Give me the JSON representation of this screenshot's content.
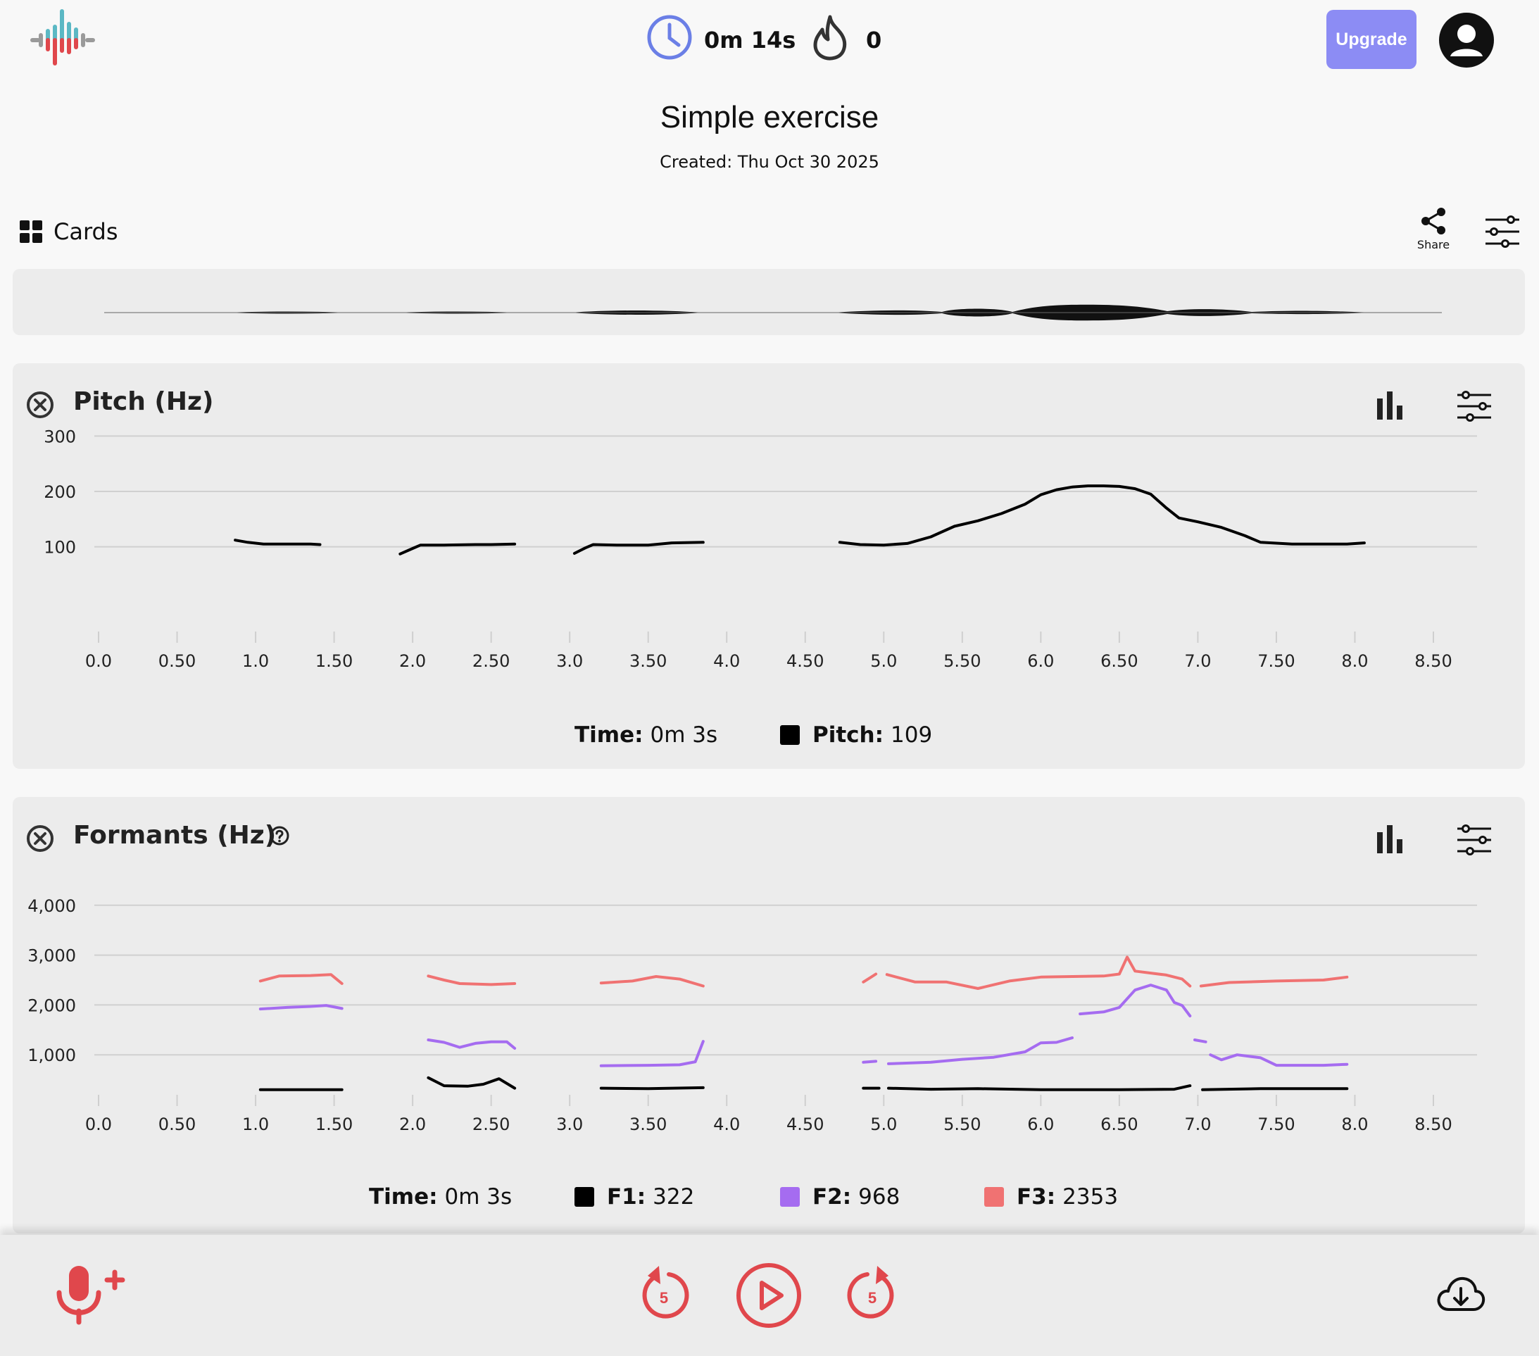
{
  "header": {
    "timer": "0m 14s",
    "streak": "0",
    "upgrade_label": "Upgrade"
  },
  "exercise": {
    "title": "Simple exercise",
    "created": "Created: Thu Oct 30 2025"
  },
  "toolbar": {
    "cards_label": "Cards",
    "share_label": "Share"
  },
  "pitch_panel": {
    "title": "Pitch (Hz)",
    "time_label": "Time:",
    "time_value": "0m 3s",
    "pitch_label": "Pitch:",
    "pitch_value": "109"
  },
  "formants_panel": {
    "title": "Formants (Hz)",
    "time_label": "Time:",
    "time_value": "0m 3s",
    "f1_label": "F1:",
    "f1_value": "322",
    "f2_label": "F2:",
    "f2_value": "968",
    "f3_label": "F3:",
    "f3_value": "2353"
  },
  "bottom_bar": {
    "rewind_seconds": "5",
    "forward_seconds": "5"
  },
  "colors": {
    "accent": "#e0474c",
    "upgrade": "#8c8cf4",
    "timer_icon": "#6b7fe6",
    "f1": "#000000",
    "f2": "#a56cf0",
    "f3": "#f07272"
  },
  "chart_data": [
    {
      "type": "line",
      "title": "Pitch (Hz)",
      "xlim": [
        0,
        8.5
      ],
      "ylim": [
        0,
        320
      ],
      "x_ticks": [
        "0.0",
        "0.50",
        "1.0",
        "1.50",
        "2.0",
        "2.50",
        "3.0",
        "3.50",
        "4.0",
        "4.50",
        "5.0",
        "5.50",
        "6.0",
        "6.50",
        "7.0",
        "7.50",
        "8.0",
        "8.50"
      ],
      "y_ticks": [
        "100",
        "200",
        "300"
      ],
      "grid": true,
      "series": [
        {
          "color": "#000000",
          "segments": [
            [
              [
                0.87,
                112
              ],
              [
                0.95,
                108
              ],
              [
                1.05,
                105
              ],
              [
                1.2,
                105
              ],
              [
                1.35,
                105
              ],
              [
                1.41,
                104
              ]
            ],
            [
              [
                1.92,
                87
              ],
              [
                2.0,
                97
              ],
              [
                2.05,
                103
              ],
              [
                2.2,
                103
              ],
              [
                2.4,
                104
              ],
              [
                2.5,
                104
              ],
              [
                2.65,
                105
              ]
            ],
            [
              [
                3.03,
                88
              ],
              [
                3.1,
                98
              ],
              [
                3.15,
                104
              ],
              [
                3.3,
                103
              ],
              [
                3.5,
                103
              ],
              [
                3.65,
                107
              ],
              [
                3.85,
                108
              ]
            ],
            [
              [
                4.72,
                108
              ],
              [
                4.85,
                104
              ],
              [
                5.0,
                103
              ],
              [
                5.15,
                106
              ],
              [
                5.3,
                118
              ],
              [
                5.45,
                137
              ],
              [
                5.6,
                147
              ],
              [
                5.75,
                160
              ],
              [
                5.9,
                177
              ],
              [
                6.0,
                194
              ],
              [
                6.1,
                203
              ],
              [
                6.2,
                208
              ],
              [
                6.3,
                210
              ],
              [
                6.4,
                210
              ],
              [
                6.5,
                209
              ],
              [
                6.6,
                205
              ],
              [
                6.7,
                195
              ],
              [
                6.8,
                170
              ],
              [
                6.88,
                152
              ],
              [
                7.0,
                145
              ],
              [
                7.15,
                135
              ],
              [
                7.3,
                120
              ],
              [
                7.4,
                108
              ],
              [
                7.6,
                105
              ],
              [
                7.8,
                105
              ],
              [
                7.95,
                105
              ],
              [
                8.06,
                107
              ]
            ]
          ]
        }
      ]
    },
    {
      "type": "line",
      "title": "Formants (Hz)",
      "xlim": [
        0,
        8.5
      ],
      "ylim": [
        0,
        4000
      ],
      "x_ticks": [
        "0.0",
        "0.50",
        "1.0",
        "1.50",
        "2.0",
        "2.50",
        "3.0",
        "3.50",
        "4.0",
        "4.50",
        "5.0",
        "5.50",
        "6.0",
        "6.50",
        "7.0",
        "7.50",
        "8.0",
        "8.50"
      ],
      "y_ticks": [
        "1,000",
        "2,000",
        "3,000",
        "4,000"
      ],
      "grid": true,
      "series": [
        {
          "name": "F1",
          "color": "#000000",
          "segments": [
            [
              [
                1.03,
                300
              ],
              [
                1.3,
                300
              ],
              [
                1.55,
                300
              ]
            ],
            [
              [
                2.1,
                540
              ],
              [
                2.2,
                380
              ],
              [
                2.35,
                370
              ],
              [
                2.45,
                410
              ],
              [
                2.55,
                520
              ],
              [
                2.65,
                330
              ]
            ],
            [
              [
                3.2,
                330
              ],
              [
                3.5,
                320
              ],
              [
                3.85,
                340
              ]
            ],
            [
              [
                4.87,
                330
              ],
              [
                4.97,
                330
              ]
            ],
            [
              [
                5.03,
                330
              ],
              [
                5.3,
                310
              ],
              [
                5.6,
                320
              ],
              [
                6.0,
                300
              ],
              [
                6.5,
                300
              ],
              [
                6.85,
                310
              ],
              [
                6.95,
                380
              ]
            ],
            [
              [
                7.03,
                300
              ],
              [
                7.4,
                320
              ],
              [
                7.95,
                320
              ]
            ]
          ]
        },
        {
          "name": "F2",
          "color": "#a56cf0",
          "segments": [
            [
              [
                1.03,
                1920
              ],
              [
                1.2,
                1950
              ],
              [
                1.35,
                1970
              ],
              [
                1.45,
                1990
              ],
              [
                1.55,
                1930
              ]
            ],
            [
              [
                2.1,
                1300
              ],
              [
                2.2,
                1250
              ],
              [
                2.3,
                1150
              ],
              [
                2.4,
                1230
              ],
              [
                2.5,
                1260
              ],
              [
                2.6,
                1260
              ],
              [
                2.65,
                1130
              ]
            ],
            [
              [
                3.2,
                780
              ],
              [
                3.5,
                790
              ],
              [
                3.7,
                800
              ],
              [
                3.8,
                860
              ],
              [
                3.85,
                1270
              ]
            ],
            [
              [
                4.87,
                850
              ],
              [
                4.95,
                870
              ]
            ],
            [
              [
                5.03,
                820
              ],
              [
                5.3,
                850
              ],
              [
                5.5,
                910
              ],
              [
                5.7,
                950
              ],
              [
                5.9,
                1060
              ],
              [
                6.0,
                1240
              ],
              [
                6.1,
                1250
              ],
              [
                6.2,
                1340
              ]
            ],
            [
              [
                6.25,
                1820
              ],
              [
                6.4,
                1860
              ],
              [
                6.5,
                1950
              ],
              [
                6.6,
                2300
              ],
              [
                6.7,
                2400
              ],
              [
                6.8,
                2300
              ],
              [
                6.85,
                2050
              ],
              [
                6.9,
                1990
              ],
              [
                6.95,
                1780
              ]
            ],
            [
              [
                6.98,
                1300
              ],
              [
                7.05,
                1260
              ]
            ],
            [
              [
                7.08,
                1000
              ],
              [
                7.15,
                900
              ],
              [
                7.25,
                1000
              ],
              [
                7.4,
                940
              ],
              [
                7.5,
                790
              ],
              [
                7.8,
                790
              ],
              [
                7.95,
                810
              ]
            ]
          ]
        },
        {
          "name": "F3",
          "color": "#f07272",
          "segments": [
            [
              [
                1.03,
                2480
              ],
              [
                1.15,
                2580
              ],
              [
                1.35,
                2590
              ],
              [
                1.48,
                2610
              ],
              [
                1.55,
                2430
              ]
            ],
            [
              [
                2.1,
                2580
              ],
              [
                2.2,
                2500
              ],
              [
                2.3,
                2430
              ],
              [
                2.5,
                2410
              ],
              [
                2.65,
                2430
              ]
            ],
            [
              [
                3.2,
                2440
              ],
              [
                3.4,
                2480
              ],
              [
                3.55,
                2570
              ],
              [
                3.7,
                2520
              ],
              [
                3.85,
                2380
              ]
            ],
            [
              [
                4.87,
                2460
              ],
              [
                4.92,
                2560
              ],
              [
                4.95,
                2620
              ]
            ],
            [
              [
                5.02,
                2610
              ],
              [
                5.2,
                2460
              ],
              [
                5.4,
                2460
              ],
              [
                5.6,
                2330
              ],
              [
                5.8,
                2480
              ],
              [
                6.0,
                2560
              ],
              [
                6.2,
                2570
              ],
              [
                6.4,
                2580
              ],
              [
                6.5,
                2620
              ],
              [
                6.55,
                2960
              ],
              [
                6.6,
                2680
              ],
              [
                6.8,
                2600
              ],
              [
                6.9,
                2520
              ],
              [
                6.95,
                2380
              ]
            ],
            [
              [
                7.02,
                2380
              ],
              [
                7.2,
                2450
              ],
              [
                7.5,
                2480
              ],
              [
                7.8,
                2500
              ],
              [
                7.95,
                2560
              ]
            ]
          ]
        }
      ]
    }
  ]
}
